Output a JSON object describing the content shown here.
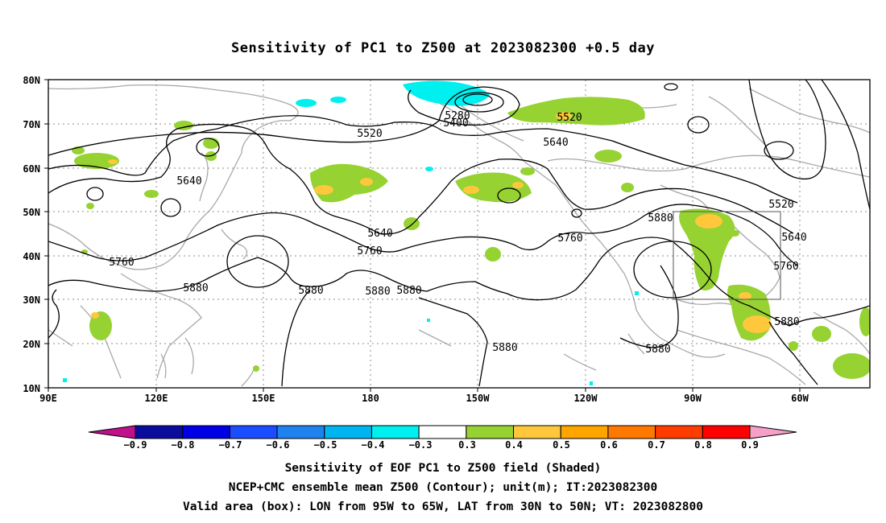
{
  "title": "Sensitivity of PC1 to Z500 at 2023082300 +0.5 day",
  "lat_labels": [
    "80N",
    "70N",
    "60N",
    "50N",
    "40N",
    "30N",
    "20N",
    "10N"
  ],
  "lon_labels": [
    "90E",
    "120E",
    "150E",
    "180",
    "150W",
    "120W",
    "90W",
    "60W"
  ],
  "contour_labels": [
    "5280",
    "5400",
    "5520",
    "5520",
    "5520",
    "5640",
    "5640",
    "5640",
    "5640",
    "5760",
    "5760",
    "5760",
    "5760",
    "5880",
    "5880",
    "5880",
    "5880",
    "5880",
    "5880",
    "5880",
    "5880"
  ],
  "colorbar": {
    "labels": [
      "−0.9",
      "−0.8",
      "−0.7",
      "−0.6",
      "−0.5",
      "−0.4",
      "−0.3",
      "0.3",
      "0.4",
      "0.5",
      "0.6",
      "0.7",
      "0.8",
      "0.9"
    ],
    "colors": [
      "#0b0b9e",
      "#0000e6",
      "#1a4dff",
      "#1e82f0",
      "#00b4f0",
      "#00f0f0",
      "#ffffff",
      "#96d232",
      "#ffc83c",
      "#ffa500",
      "#ff7800",
      "#ff3c00",
      "#ff0000"
    ],
    "under_color": "#c0108c",
    "over_color": "#f5a0c8"
  },
  "captions": [
    "Sensitivity of EOF PC1 to Z500 field (Shaded)",
    "NCEP+CMC ensemble mean Z500 (Contour); unit(m); IT:2023082300",
    "Valid area (box): LON from 95W to 65W, LAT from 30N to 50N; VT: 2023082800"
  ]
}
